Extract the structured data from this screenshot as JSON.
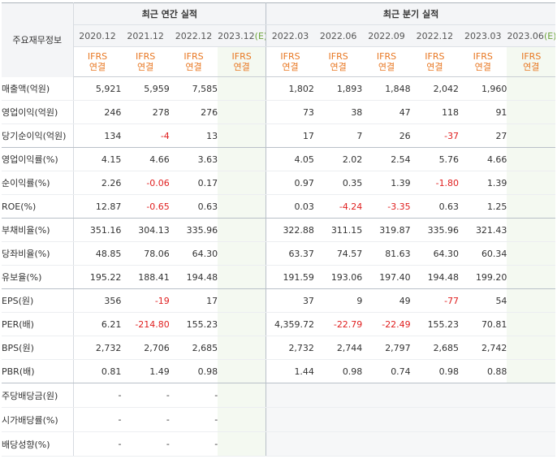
{
  "header": {
    "row_label": "주요재무정보",
    "annual_group": "최근 연간 실적",
    "quarter_group": "최근 분기 실적",
    "annual_periods": [
      {
        "label": "2020.12",
        "est": ""
      },
      {
        "label": "2021.12",
        "est": ""
      },
      {
        "label": "2022.12",
        "est": ""
      },
      {
        "label": "2023.12",
        "est": "(E)"
      }
    ],
    "quarter_periods": [
      {
        "label": "2022.03",
        "est": ""
      },
      {
        "label": "2022.06",
        "est": ""
      },
      {
        "label": "2022.09",
        "est": ""
      },
      {
        "label": "2022.12",
        "est": ""
      },
      {
        "label": "2023.03",
        "est": ""
      },
      {
        "label": "2023.06",
        "est": "(E)"
      }
    ],
    "ifrs_line1": "IFRS",
    "ifrs_line2": "연결"
  },
  "colors": {
    "negative": "#e02020",
    "ifrs": "#e87722",
    "estimate_bg": "#f4f9f1"
  },
  "rows": [
    {
      "label": "매출액(억원)",
      "annual": [
        "5,921",
        "5,959",
        "7,585",
        ""
      ],
      "quarter": [
        "1,802",
        "1,893",
        "1,848",
        "2,042",
        "1,960",
        ""
      ]
    },
    {
      "label": "영업이익(억원)",
      "annual": [
        "246",
        "278",
        "276",
        ""
      ],
      "quarter": [
        "73",
        "38",
        "47",
        "118",
        "91",
        ""
      ]
    },
    {
      "label": "당기순이익(억원)",
      "annual": [
        "134",
        "-4",
        "13",
        ""
      ],
      "quarter": [
        "17",
        "7",
        "26",
        "-37",
        "27",
        ""
      ]
    },
    {
      "label": "영업이익률(%)",
      "annual": [
        "4.15",
        "4.66",
        "3.63",
        ""
      ],
      "quarter": [
        "4.05",
        "2.02",
        "2.54",
        "5.76",
        "4.66",
        ""
      ]
    },
    {
      "label": "순이익률(%)",
      "annual": [
        "2.26",
        "-0.06",
        "0.17",
        ""
      ],
      "quarter": [
        "0.97",
        "0.35",
        "1.39",
        "-1.80",
        "1.39",
        ""
      ]
    },
    {
      "label": "ROE(%)",
      "annual": [
        "12.87",
        "-0.65",
        "0.63",
        ""
      ],
      "quarter": [
        "0.03",
        "-4.24",
        "-3.35",
        "0.63",
        "1.25",
        ""
      ]
    },
    {
      "label": "부채비율(%)",
      "annual": [
        "351.16",
        "304.13",
        "335.96",
        ""
      ],
      "quarter": [
        "322.88",
        "311.15",
        "319.87",
        "335.96",
        "321.43",
        ""
      ]
    },
    {
      "label": "당좌비율(%)",
      "annual": [
        "48.85",
        "78.06",
        "64.30",
        ""
      ],
      "quarter": [
        "63.37",
        "74.57",
        "81.63",
        "64.30",
        "60.34",
        ""
      ]
    },
    {
      "label": "유보율(%)",
      "annual": [
        "195.22",
        "188.41",
        "194.48",
        ""
      ],
      "quarter": [
        "191.59",
        "193.06",
        "197.40",
        "194.48",
        "199.20",
        ""
      ]
    },
    {
      "label": "EPS(원)",
      "annual": [
        "356",
        "-19",
        "17",
        ""
      ],
      "quarter": [
        "37",
        "9",
        "49",
        "-77",
        "54",
        ""
      ]
    },
    {
      "label": "PER(배)",
      "annual": [
        "6.21",
        "-214.80",
        "155.23",
        ""
      ],
      "quarter": [
        "4,359.72",
        "-22.79",
        "-22.49",
        "155.23",
        "70.81",
        ""
      ]
    },
    {
      "label": "BPS(원)",
      "annual": [
        "2,732",
        "2,706",
        "2,685",
        ""
      ],
      "quarter": [
        "2,732",
        "2,744",
        "2,797",
        "2,685",
        "2,742",
        ""
      ]
    },
    {
      "label": "PBR(배)",
      "annual": [
        "0.81",
        "1.49",
        "0.98",
        ""
      ],
      "quarter": [
        "1.44",
        "0.98",
        "0.74",
        "0.98",
        "0.88",
        ""
      ]
    },
    {
      "label": "주당배당금(원)",
      "annual": [
        "-",
        "-",
        "-",
        ""
      ],
      "quarter": [
        "",
        "",
        "",
        "",
        "",
        ""
      ],
      "quarter_gray": true
    },
    {
      "label": "시가배당률(%)",
      "annual": [
        "-",
        "-",
        "-",
        ""
      ],
      "quarter": [
        "",
        "",
        "",
        "",
        "",
        ""
      ],
      "quarter_gray": true
    },
    {
      "label": "배당성향(%)",
      "annual": [
        "-",
        "-",
        "-",
        ""
      ],
      "quarter": [
        "",
        "",
        "",
        "",
        "",
        ""
      ],
      "quarter_gray": true
    }
  ]
}
